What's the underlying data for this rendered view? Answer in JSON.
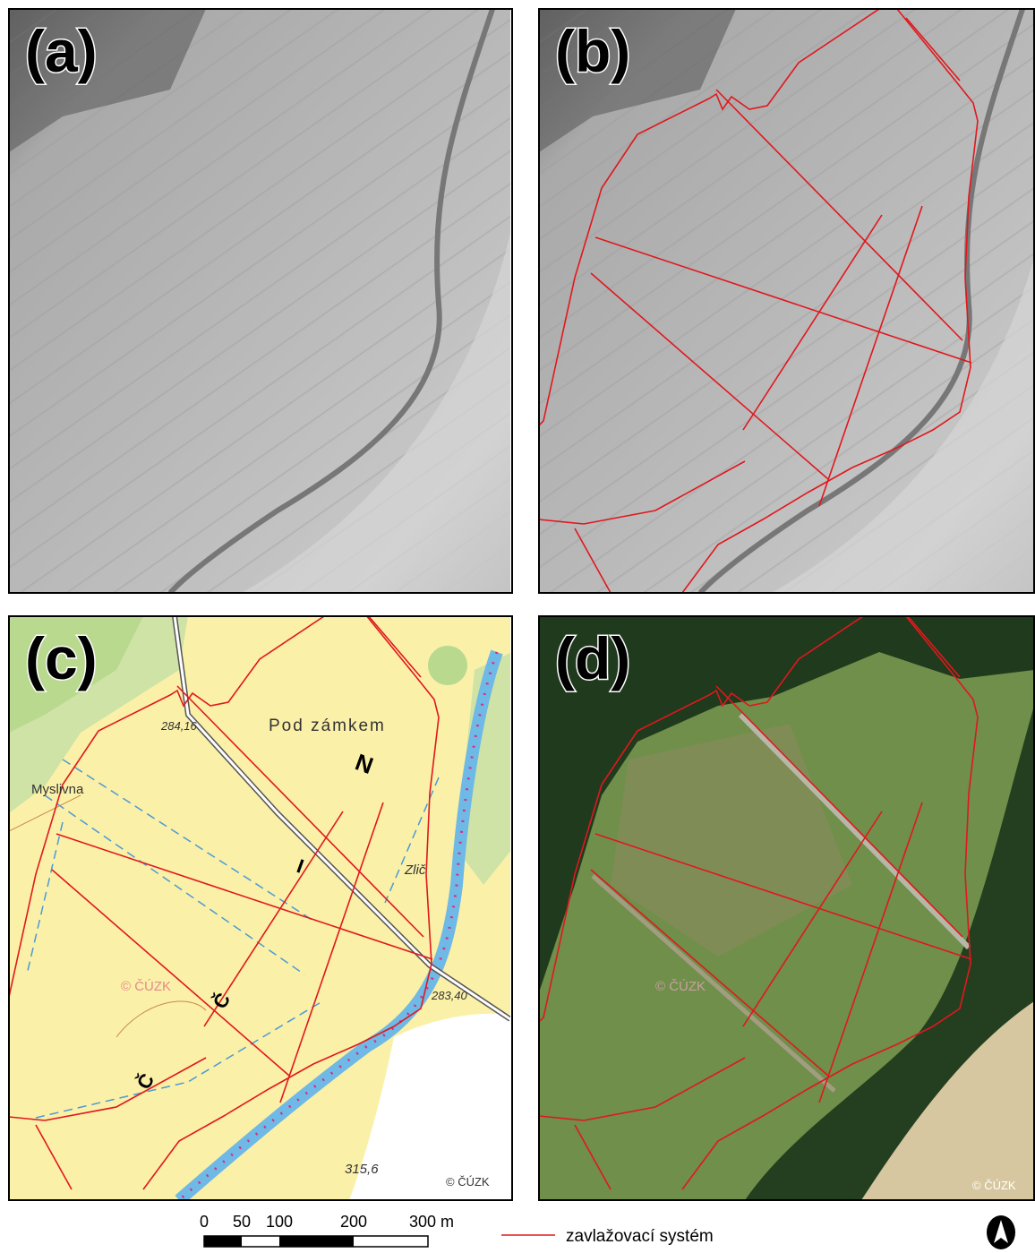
{
  "panels": [
    {
      "label": "(a)"
    },
    {
      "label": "(b)"
    },
    {
      "label": "(c)",
      "map_labels": [
        "Pod zámkem",
        "Myslivna",
        "284,16",
        "283,40",
        "Zlič",
        "315,6",
        "© ČÚZK",
        "© ČÚZK",
        "N",
        "I",
        "Č",
        "Č"
      ]
    },
    {
      "label": "(d)",
      "map_labels": [
        "© ČÚZK",
        "© ČÚZK"
      ]
    }
  ],
  "scale_bar": {
    "labels": [
      "0",
      "50",
      "100",
      "200",
      "300 m"
    ]
  },
  "legend": {
    "label": "zavlažovací systém"
  }
}
